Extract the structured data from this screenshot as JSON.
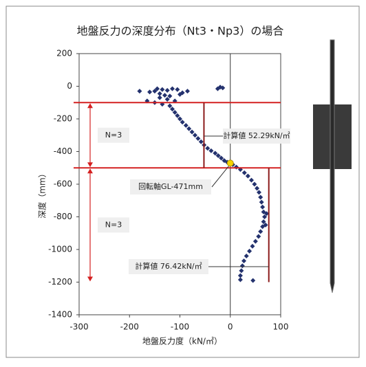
{
  "chart_data": {
    "type": "scatter",
    "title": "地盤反力の深度分布（Nt3・Np3）の場合",
    "xlabel": "地盤反力度（kN/㎡）",
    "ylabel": "深度（mm）",
    "xlim": [
      -300,
      100
    ],
    "xticks": [
      -300,
      -200,
      -100,
      0,
      100
    ],
    "ylim": [
      -1400,
      200
    ],
    "yticks": [
      -1400,
      -1200,
      -1000,
      -800,
      -600,
      -400,
      -200,
      0,
      200
    ],
    "color": "#24326e",
    "x": [
      -145,
      -135,
      -125,
      -150,
      -115,
      -105,
      -95,
      -140,
      -160,
      -180,
      -130,
      -120,
      -100,
      -85,
      -20,
      -15,
      -25,
      -140,
      -125,
      -110,
      -165,
      -150,
      -135,
      -120,
      -115,
      -110,
      -105,
      -100,
      -95,
      -88,
      -82,
      -76,
      -70,
      -64,
      -58,
      -52,
      -45,
      -38,
      -30,
      -24,
      -18,
      -12,
      -6,
      5,
      12,
      20,
      28,
      35,
      42,
      48,
      53,
      57,
      60,
      62,
      64,
      66,
      68,
      66,
      64,
      60,
      56,
      50,
      44,
      38,
      32,
      27,
      24,
      22,
      20,
      20,
      45,
      70,
      72
    ],
    "y": [
      -15,
      -20,
      -25,
      -30,
      -15,
      -20,
      -40,
      -45,
      -35,
      -30,
      -55,
      -60,
      -50,
      -30,
      -5,
      -10,
      -15,
      -70,
      -80,
      -90,
      -90,
      -100,
      -110,
      -120,
      -140,
      -160,
      -180,
      -200,
      -220,
      -240,
      -260,
      -280,
      -300,
      -320,
      -340,
      -360,
      -380,
      -395,
      -410,
      -425,
      -440,
      -455,
      -465,
      -480,
      -495,
      -510,
      -530,
      -550,
      -575,
      -600,
      -625,
      -650,
      -680,
      -710,
      -740,
      -770,
      -800,
      -830,
      -860,
      -890,
      -920,
      -950,
      -980,
      -1010,
      -1040,
      -1070,
      -1100,
      -1130,
      -1160,
      -1185,
      -1190,
      -850,
      -780
    ],
    "boundaries": [
      -100,
      -500
    ],
    "layers": [
      {
        "label": "N=3",
        "from": -100,
        "to": -500
      },
      {
        "label": "N=3",
        "from": -500,
        "to": -1200
      }
    ],
    "calc_lines": [
      {
        "x": -52.29,
        "from": -100,
        "to": -500,
        "label": "計算値 52.29kN/㎡"
      },
      {
        "x": 76.42,
        "from": -500,
        "to": -1200,
        "label": "計算値 76.42kN/㎡"
      }
    ],
    "rotation_point": {
      "x": 0,
      "y": -471,
      "label": "回転軸GL-471mm"
    }
  }
}
